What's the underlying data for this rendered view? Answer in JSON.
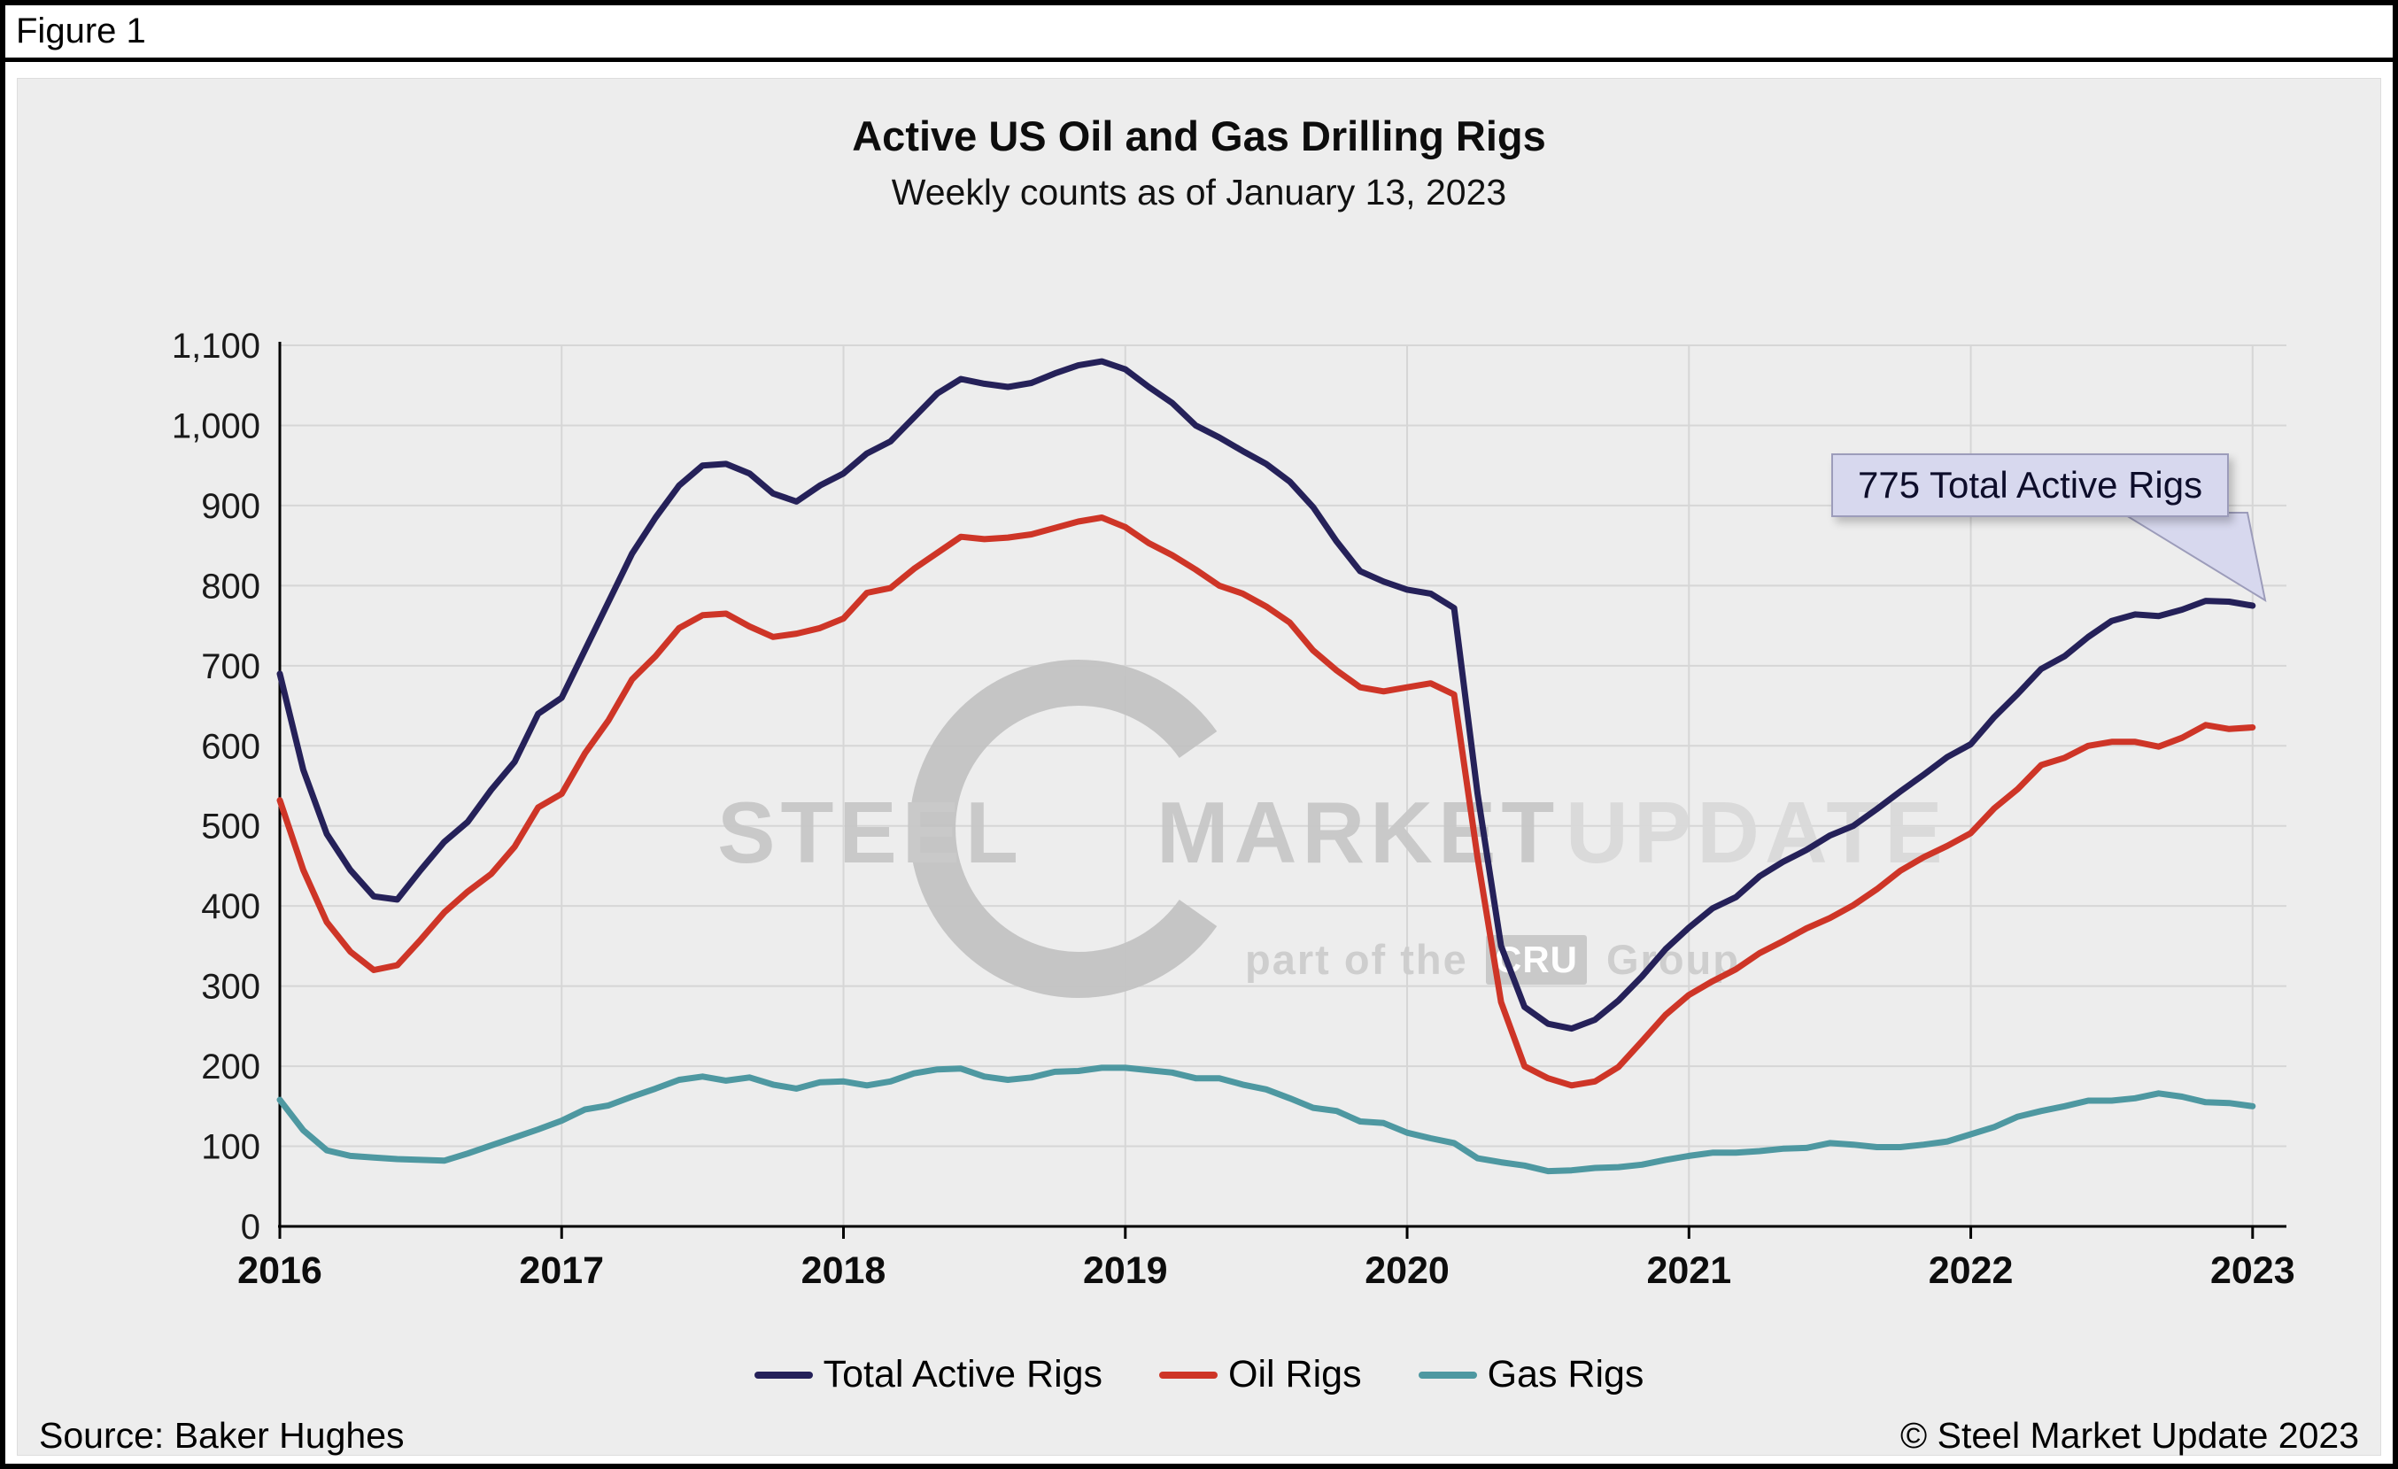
{
  "figure_label": "Figure 1",
  "footer": {
    "source": "Source: Baker Hughes",
    "copyright": "© Steel Market Update 2023"
  },
  "watermark": {
    "word1": "STEEL",
    "word2": "MARKET",
    "word3": "UPDATE",
    "tagline_prefix": "part of the",
    "tagline_box": "CRU",
    "tagline_suffix": "Group"
  },
  "chart_data": {
    "type": "line",
    "title": "Active US Oil and Gas Drilling Rigs",
    "subtitle": "Weekly counts as of January 13, 2023",
    "xlabel": "",
    "ylabel": "",
    "xlim": [
      2016,
      2023.12
    ],
    "ylim": [
      0,
      1100
    ],
    "y_tick_step": 100,
    "y_tick_labels": [
      "0",
      "100",
      "200",
      "300",
      "400",
      "500",
      "600",
      "700",
      "800",
      "900",
      "1,000",
      "1,100"
    ],
    "x_ticks": [
      2016,
      2017,
      2018,
      2019,
      2020,
      2021,
      2022,
      2023
    ],
    "x_tick_labels": [
      "2016",
      "2017",
      "2018",
      "2019",
      "2020",
      "2021",
      "2022",
      "2023"
    ],
    "grid": true,
    "legend_position": "bottom",
    "x_start": 2016,
    "x_step": 0.0833333,
    "annotation": {
      "text": "775 Total Active Rigs",
      "value": 775,
      "x": 2023.04
    },
    "series": [
      {
        "name": "Total Active Rigs",
        "color": "#252159",
        "values": [
          690,
          570,
          490,
          445,
          412,
          408,
          445,
          480,
          505,
          545,
          580,
          640,
          660,
          720,
          780,
          840,
          885,
          925,
          950,
          952,
          940,
          915,
          905,
          925,
          940,
          965,
          980,
          1010,
          1040,
          1058,
          1052,
          1048,
          1053,
          1065,
          1075,
          1080,
          1070,
          1048,
          1028,
          1000,
          985,
          968,
          952,
          930,
          898,
          855,
          818,
          805,
          795,
          790,
          772,
          540,
          350,
          274,
          253,
          247,
          258,
          282,
          312,
          346,
          373,
          397,
          411,
          437,
          455,
          470,
          488,
          500,
          521,
          543,
          564,
          586,
          602,
          636,
          665,
          696,
          712,
          736,
          756,
          764,
          762,
          770,
          781,
          780,
          775
        ]
      },
      {
        "name": "Oil Rigs",
        "color": "#CE3527",
        "values": [
          532,
          445,
          380,
          343,
          320,
          326,
          358,
          392,
          418,
          440,
          474,
          523,
          540,
          591,
          632,
          683,
          712,
          747,
          763,
          765,
          749,
          736,
          740,
          747,
          759,
          791,
          797,
          821,
          841,
          861,
          858,
          860,
          864,
          872,
          880,
          885,
          873,
          853,
          838,
          820,
          800,
          790,
          774,
          754,
          719,
          694,
          673,
          668,
          673,
          678,
          664,
          460,
          280,
          200,
          185,
          176,
          181,
          199,
          231,
          264,
          289,
          306,
          321,
          341,
          356,
          372,
          385,
          401,
          421,
          444,
          461,
          475,
          491,
          522,
          546,
          576,
          585,
          600,
          605,
          605,
          599,
          610,
          626,
          621,
          623
        ]
      },
      {
        "name": "Gas Rigs",
        "color": "#4E98A1",
        "values": [
          158,
          120,
          95,
          88,
          86,
          84,
          83,
          82,
          91,
          101,
          111,
          121,
          132,
          146,
          151,
          162,
          172,
          183,
          187,
          182,
          186,
          177,
          172,
          180,
          181,
          176,
          181,
          191,
          196,
          197,
          187,
          183,
          186,
          193,
          194,
          198,
          198,
          195,
          192,
          185,
          185,
          177,
          171,
          160,
          148,
          144,
          131,
          129,
          117,
          110,
          104,
          85,
          80,
          76,
          69,
          70,
          73,
          74,
          77,
          83,
          88,
          92,
          92,
          94,
          97,
          98,
          104,
          102,
          99,
          99,
          102,
          106,
          115,
          124,
          137,
          144,
          150,
          157,
          157,
          160,
          166,
          162,
          155,
          154,
          150
        ]
      }
    ]
  }
}
